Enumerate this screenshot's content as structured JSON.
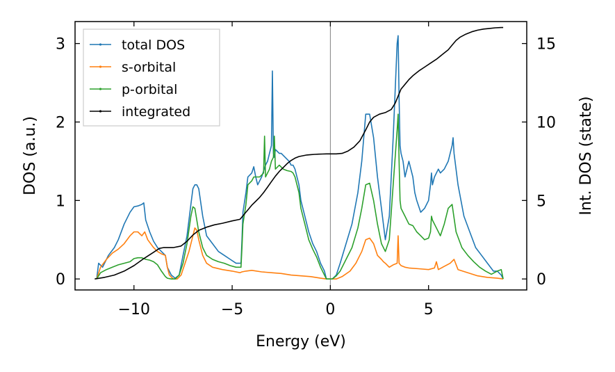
{
  "chart_data": {
    "type": "line",
    "title": "",
    "xlabel": "Energy (eV)",
    "ylabel": "DOS (a.u.)",
    "y2label": "Int. DOS (state)",
    "xlim": [
      -13.0,
      10.0
    ],
    "ylim": [
      -0.14,
      3.28
    ],
    "y2lim": [
      -0.7,
      16.4
    ],
    "xticks": [
      {
        "v": -10,
        "label": "−10"
      },
      {
        "v": -5,
        "label": "−5"
      },
      {
        "v": 0,
        "label": "0"
      },
      {
        "v": 5,
        "label": "5"
      }
    ],
    "yticks": [
      {
        "v": 0,
        "label": "0"
      },
      {
        "v": 1,
        "label": "1"
      },
      {
        "v": 2,
        "label": "2"
      },
      {
        "v": 3,
        "label": "3"
      }
    ],
    "y2ticks": [
      {
        "v": 0,
        "label": "0"
      },
      {
        "v": 5,
        "label": "5"
      },
      {
        "v": 10,
        "label": "10"
      },
      {
        "v": 15,
        "label": "15"
      }
    ],
    "fermi_level": 0,
    "legend_position": "top-left",
    "grid": false,
    "series": [
      {
        "name": "total DOS",
        "color": "#1f77b4",
        "axis": "left",
        "x": [
          -11.9,
          -11.8,
          -11.6,
          -11.3,
          -11.0,
          -10.8,
          -10.5,
          -10.2,
          -10.0,
          -9.8,
          -9.6,
          -9.5,
          -9.4,
          -9.2,
          -9.0,
          -8.8,
          -8.6,
          -8.4,
          -8.3,
          -8.1,
          -7.9,
          -7.7,
          -7.5,
          -7.3,
          -7.1,
          -7.0,
          -6.9,
          -6.8,
          -6.7,
          -6.5,
          -6.3,
          -6.0,
          -5.7,
          -5.4,
          -5.1,
          -4.8,
          -4.55,
          -4.5,
          -4.45,
          -4.3,
          -4.2,
          -4.0,
          -3.9,
          -3.8,
          -3.7,
          -3.5,
          -3.3,
          -3.2,
          -3.1,
          -3.0,
          -2.95,
          -2.9,
          -2.85,
          -2.8,
          -2.6,
          -2.5,
          -2.3,
          -2.1,
          -2.0,
          -1.9,
          -1.8,
          -1.6,
          -1.5,
          -1.3,
          -1.1,
          -0.9,
          -0.7,
          -0.5,
          -0.3,
          -0.2,
          0.0,
          0.1,
          0.3,
          0.5,
          0.8,
          1.1,
          1.4,
          1.6,
          1.8,
          2.0,
          2.2,
          2.4,
          2.6,
          2.8,
          3.0,
          3.2,
          3.4,
          3.45,
          3.5,
          3.55,
          3.6,
          3.7,
          3.8,
          3.9,
          4.0,
          4.2,
          4.3,
          4.4,
          4.6,
          4.8,
          5.0,
          5.1,
          5.15,
          5.2,
          5.3,
          5.5,
          5.6,
          5.8,
          6.0,
          6.1,
          6.2,
          6.25,
          6.3,
          6.5,
          6.8,
          7.1,
          7.4,
          7.7,
          8.0,
          8.3,
          8.5,
          8.7,
          8.8
        ],
        "y": [
          0.0,
          0.2,
          0.15,
          0.3,
          0.4,
          0.5,
          0.7,
          0.85,
          0.92,
          0.93,
          0.95,
          0.97,
          0.75,
          0.6,
          0.48,
          0.4,
          0.35,
          0.3,
          0.15,
          0.05,
          0.01,
          0.05,
          0.3,
          0.55,
          0.95,
          1.15,
          1.2,
          1.2,
          1.15,
          0.8,
          0.55,
          0.45,
          0.35,
          0.3,
          0.25,
          0.2,
          0.2,
          0.5,
          0.85,
          1.1,
          1.3,
          1.35,
          1.43,
          1.3,
          1.2,
          1.3,
          1.45,
          1.5,
          1.6,
          1.7,
          2.65,
          1.6,
          1.55,
          1.65,
          1.6,
          1.6,
          1.55,
          1.5,
          1.45,
          1.45,
          1.4,
          1.2,
          1.0,
          0.8,
          0.6,
          0.45,
          0.35,
          0.2,
          0.1,
          0.0,
          0.0,
          0.0,
          0.05,
          0.2,
          0.45,
          0.7,
          1.1,
          1.5,
          2.1,
          2.1,
          1.8,
          1.3,
          0.9,
          0.5,
          0.8,
          1.8,
          3.0,
          3.1,
          2.3,
          1.7,
          1.6,
          1.5,
          1.3,
          1.4,
          1.5,
          1.3,
          1.1,
          1.0,
          0.85,
          0.9,
          1.0,
          1.2,
          1.35,
          1.2,
          1.3,
          1.4,
          1.35,
          1.4,
          1.5,
          1.6,
          1.7,
          1.8,
          1.6,
          1.2,
          0.8,
          0.6,
          0.4,
          0.3,
          0.2,
          0.1,
          0.1,
          0.05,
          0.0
        ]
      },
      {
        "name": "s-orbital",
        "color": "#ff7f0e",
        "axis": "left",
        "x": [
          -11.9,
          -11.7,
          -11.4,
          -11.1,
          -10.8,
          -10.5,
          -10.2,
          -10.0,
          -9.8,
          -9.6,
          -9.45,
          -9.3,
          -9.0,
          -8.8,
          -8.6,
          -8.4,
          -8.3,
          -8.2,
          -8.0,
          -7.8,
          -7.6,
          -7.4,
          -7.2,
          -7.0,
          -6.9,
          -6.8,
          -6.7,
          -6.5,
          -6.3,
          -6.0,
          -5.5,
          -5.0,
          -4.6,
          -4.5,
          -4.3,
          -4.0,
          -3.5,
          -3.0,
          -2.5,
          -2.0,
          -1.5,
          -1.0,
          -0.5,
          -0.2,
          0.0,
          0.3,
          0.6,
          1.0,
          1.3,
          1.6,
          1.8,
          2.0,
          2.2,
          2.4,
          2.6,
          2.7,
          2.8,
          3.0,
          3.2,
          3.4,
          3.45,
          3.5,
          3.6,
          3.8,
          4.0,
          4.5,
          5.0,
          5.3,
          5.4,
          5.5,
          5.8,
          6.1,
          6.3,
          6.5,
          7.0,
          7.5,
          8.0,
          8.5,
          8.8
        ],
        "y": [
          0.0,
          0.15,
          0.25,
          0.33,
          0.38,
          0.45,
          0.55,
          0.6,
          0.6,
          0.55,
          0.6,
          0.5,
          0.4,
          0.35,
          0.32,
          0.3,
          0.15,
          0.05,
          0.0,
          0.0,
          0.05,
          0.2,
          0.35,
          0.55,
          0.65,
          0.62,
          0.5,
          0.3,
          0.2,
          0.15,
          0.12,
          0.1,
          0.08,
          0.09,
          0.1,
          0.11,
          0.09,
          0.08,
          0.07,
          0.05,
          0.04,
          0.03,
          0.01,
          0.0,
          0.0,
          0.0,
          0.03,
          0.1,
          0.2,
          0.35,
          0.5,
          0.52,
          0.45,
          0.3,
          0.25,
          0.22,
          0.2,
          0.15,
          0.18,
          0.2,
          0.55,
          0.2,
          0.17,
          0.15,
          0.14,
          0.13,
          0.12,
          0.14,
          0.22,
          0.12,
          0.16,
          0.2,
          0.25,
          0.12,
          0.08,
          0.04,
          0.02,
          0.01,
          0.0
        ]
      },
      {
        "name": "p-orbital",
        "color": "#2ca02c",
        "axis": "left",
        "x": [
          -11.9,
          -11.7,
          -11.4,
          -11.1,
          -10.8,
          -10.5,
          -10.2,
          -10.0,
          -9.8,
          -9.6,
          -9.4,
          -9.2,
          -9.0,
          -8.8,
          -8.6,
          -8.4,
          -8.3,
          -8.1,
          -7.9,
          -7.7,
          -7.5,
          -7.3,
          -7.1,
          -7.0,
          -6.9,
          -6.8,
          -6.7,
          -6.5,
          -6.3,
          -6.0,
          -5.7,
          -5.4,
          -5.1,
          -4.8,
          -4.55,
          -4.5,
          -4.45,
          -4.3,
          -4.2,
          -4.0,
          -3.9,
          -3.8,
          -3.6,
          -3.4,
          -3.35,
          -3.3,
          -3.1,
          -3.0,
          -2.9,
          -2.85,
          -2.8,
          -2.6,
          -2.4,
          -2.2,
          -2.0,
          -1.9,
          -1.8,
          -1.6,
          -1.5,
          -1.3,
          -1.1,
          -0.9,
          -0.7,
          -0.5,
          -0.3,
          -0.2,
          0.0,
          0.1,
          0.3,
          0.5,
          0.8,
          1.1,
          1.4,
          1.6,
          1.8,
          2.0,
          2.2,
          2.4,
          2.6,
          2.8,
          3.0,
          3.2,
          3.4,
          3.45,
          3.5,
          3.55,
          3.6,
          3.8,
          4.0,
          4.2,
          4.4,
          4.6,
          4.8,
          5.0,
          5.1,
          5.15,
          5.2,
          5.4,
          5.6,
          5.8,
          6.0,
          6.2,
          6.4,
          6.7,
          7.0,
          7.3,
          7.6,
          7.9,
          8.2,
          8.5,
          8.7,
          8.8
        ],
        "y": [
          0.0,
          0.08,
          0.12,
          0.15,
          0.18,
          0.2,
          0.22,
          0.26,
          0.27,
          0.27,
          0.25,
          0.24,
          0.22,
          0.18,
          0.1,
          0.03,
          0.01,
          0.0,
          0.0,
          0.05,
          0.2,
          0.45,
          0.8,
          0.92,
          0.9,
          0.75,
          0.6,
          0.4,
          0.3,
          0.25,
          0.22,
          0.2,
          0.17,
          0.15,
          0.15,
          0.4,
          0.7,
          0.95,
          1.2,
          1.25,
          1.3,
          1.3,
          1.3,
          1.35,
          1.82,
          1.3,
          1.4,
          1.5,
          1.55,
          1.82,
          1.4,
          1.45,
          1.4,
          1.38,
          1.37,
          1.35,
          1.3,
          1.1,
          0.9,
          0.7,
          0.5,
          0.38,
          0.28,
          0.15,
          0.05,
          0.0,
          0.0,
          0.0,
          0.04,
          0.1,
          0.25,
          0.4,
          0.65,
          0.9,
          1.2,
          1.22,
          1.0,
          0.7,
          0.45,
          0.35,
          0.5,
          1.2,
          1.9,
          2.1,
          1.5,
          1.0,
          0.9,
          0.8,
          0.7,
          0.68,
          0.6,
          0.55,
          0.5,
          0.52,
          0.6,
          0.8,
          0.75,
          0.65,
          0.55,
          0.7,
          0.9,
          0.95,
          0.6,
          0.4,
          0.3,
          0.22,
          0.15,
          0.1,
          0.06,
          0.1,
          0.12,
          0.0
        ]
      },
      {
        "name": "integrated",
        "color": "#000000",
        "axis": "right",
        "x": [
          -12.0,
          -11.5,
          -11.0,
          -10.5,
          -10.0,
          -9.5,
          -9.0,
          -8.7,
          -8.5,
          -8.2,
          -8.0,
          -7.6,
          -7.3,
          -7.0,
          -6.7,
          -6.3,
          -5.9,
          -5.5,
          -5.0,
          -4.6,
          -4.4,
          -4.2,
          -4.0,
          -3.8,
          -3.6,
          -3.4,
          -3.2,
          -3.0,
          -2.8,
          -2.6,
          -2.4,
          -2.2,
          -2.0,
          -1.8,
          -1.6,
          -1.4,
          -1.2,
          -1.0,
          -0.8,
          -0.6,
          -0.4,
          -0.2,
          0.0,
          0.3,
          0.6,
          0.9,
          1.2,
          1.5,
          1.8,
          2.0,
          2.2,
          2.5,
          2.8,
          3.1,
          3.3,
          3.5,
          3.6,
          3.8,
          4.0,
          4.2,
          4.5,
          4.8,
          5.1,
          5.4,
          5.7,
          6.0,
          6.2,
          6.4,
          6.6,
          6.9,
          7.2,
          7.5,
          7.8,
          8.1,
          8.4,
          8.7,
          8.8
        ],
        "y": [
          0.0,
          0.1,
          0.25,
          0.5,
          0.85,
          1.3,
          1.7,
          1.95,
          2.0,
          2.0,
          2.0,
          2.1,
          2.4,
          2.8,
          3.1,
          3.3,
          3.45,
          3.55,
          3.7,
          3.8,
          4.1,
          4.4,
          4.7,
          4.95,
          5.2,
          5.5,
          5.85,
          6.2,
          6.55,
          6.85,
          7.1,
          7.35,
          7.55,
          7.7,
          7.8,
          7.85,
          7.9,
          7.92,
          7.94,
          7.95,
          7.96,
          7.97,
          7.97,
          7.97,
          8.0,
          8.15,
          8.4,
          8.8,
          9.5,
          10.0,
          10.3,
          10.5,
          10.6,
          10.8,
          11.2,
          11.8,
          12.1,
          12.4,
          12.7,
          12.95,
          13.25,
          13.5,
          13.75,
          14.0,
          14.3,
          14.6,
          14.9,
          15.2,
          15.4,
          15.6,
          15.75,
          15.85,
          15.92,
          15.96,
          16.0,
          16.02,
          16.02
        ]
      }
    ]
  }
}
